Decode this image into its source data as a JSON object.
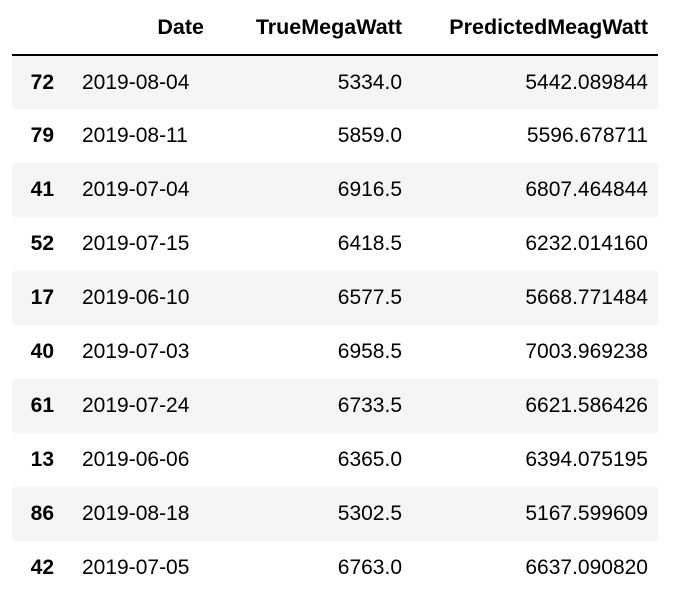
{
  "table": {
    "index_header": "",
    "columns": [
      "Date",
      "TrueMegaWatt",
      "PredictedMeagWatt"
    ],
    "rows": [
      {
        "index": "72",
        "date": "2019-08-04",
        "true_mw": "5334.0",
        "pred_mw": "5442.089844"
      },
      {
        "index": "79",
        "date": "2019-08-11",
        "true_mw": "5859.0",
        "pred_mw": "5596.678711"
      },
      {
        "index": "41",
        "date": "2019-07-04",
        "true_mw": "6916.5",
        "pred_mw": "6807.464844"
      },
      {
        "index": "52",
        "date": "2019-07-15",
        "true_mw": "6418.5",
        "pred_mw": "6232.014160"
      },
      {
        "index": "17",
        "date": "2019-06-10",
        "true_mw": "6577.5",
        "pred_mw": "5668.771484"
      },
      {
        "index": "40",
        "date": "2019-07-03",
        "true_mw": "6958.5",
        "pred_mw": "7003.969238"
      },
      {
        "index": "61",
        "date": "2019-07-24",
        "true_mw": "6733.5",
        "pred_mw": "6621.586426"
      },
      {
        "index": "13",
        "date": "2019-06-06",
        "true_mw": "6365.0",
        "pred_mw": "6394.075195"
      },
      {
        "index": "86",
        "date": "2019-08-18",
        "true_mw": "5302.5",
        "pred_mw": "5167.599609"
      },
      {
        "index": "42",
        "date": "2019-07-05",
        "true_mw": "6763.0",
        "pred_mw": "6637.090820"
      }
    ]
  },
  "colors": {
    "stripe": "#f5f5f5",
    "background": "#ffffff",
    "text": "#000000",
    "header_rule": "#000000"
  }
}
